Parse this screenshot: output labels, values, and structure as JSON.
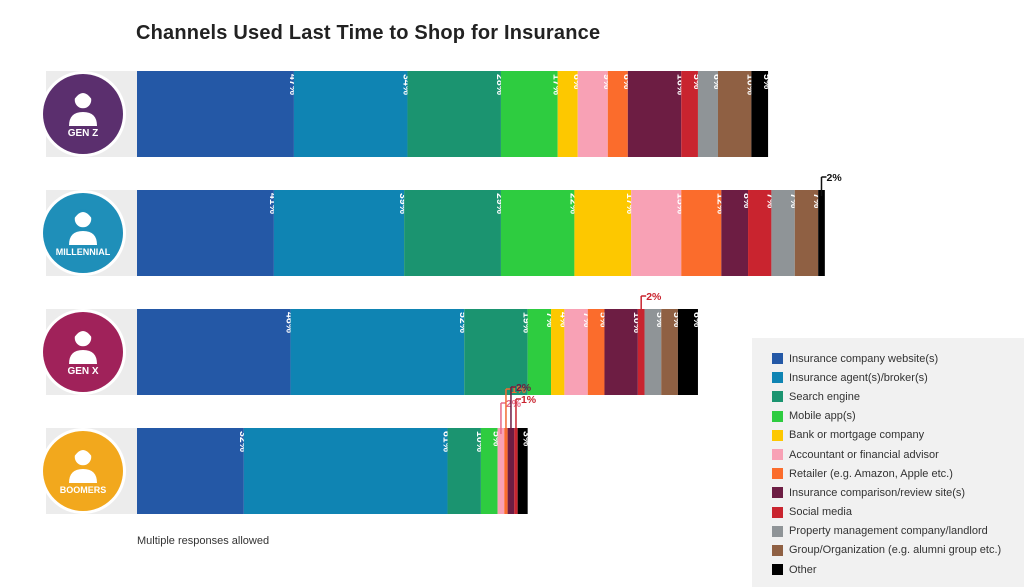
{
  "chart_data": {
    "type": "bar",
    "orientation": "horizontal-stacked",
    "title": "Channels Used Last Time to Shop for Insurance",
    "note": "Multiple responses allowed",
    "categories": [
      "GEN Z",
      "MILLENNIAL",
      "GEN X",
      "BOOMERS"
    ],
    "category_colors": [
      "#5b2f6e",
      "#1f8fb9",
      "#a0225a",
      "#f2a81d"
    ],
    "series": [
      {
        "name": "Insurance company website(s)",
        "color": "#2458a6",
        "values": [
          47,
          41,
          46,
          32
        ]
      },
      {
        "name": "Insurance agent(s)/broker(s)",
        "color": "#0f84b3",
        "values": [
          34,
          39,
          52,
          61
        ]
      },
      {
        "name": "Search engine",
        "color": "#1b9470",
        "values": [
          28,
          29,
          19,
          10
        ]
      },
      {
        "name": "Mobile app(s)",
        "color": "#2ecc40",
        "values": [
          17,
          22,
          7,
          5
        ]
      },
      {
        "name": "Bank or mortgage company",
        "color": "#fdc800",
        "values": [
          6,
          17,
          4,
          0
        ]
      },
      {
        "name": "Accountant or financial advisor",
        "color": "#f8a1b5",
        "values": [
          9,
          15,
          7,
          2
        ]
      },
      {
        "name": "Retailer (e.g. Amazon, Apple etc.)",
        "color": "#fb6c2c",
        "values": [
          6,
          12,
          5,
          1
        ]
      },
      {
        "name": "Insurance comparison/review site(s)",
        "color": "#6d1d43",
        "values": [
          16,
          8,
          10,
          2
        ]
      },
      {
        "name": "Social media",
        "color": "#c9242f",
        "values": [
          5,
          7,
          2,
          1
        ]
      },
      {
        "name": "Property management company/landlord",
        "color": "#8f9497",
        "values": [
          6,
          7,
          5,
          0
        ]
      },
      {
        "name": "Group/Organization (e.g. alumni group etc.)",
        "color": "#8f6043",
        "values": [
          10,
          7,
          5,
          0
        ]
      },
      {
        "name": "Other",
        "color": "#000000",
        "values": [
          5,
          2,
          6,
          3
        ]
      }
    ],
    "callouts": [
      {
        "category": 1,
        "series": 11,
        "label": "2%",
        "color": "#111111"
      },
      {
        "category": 2,
        "series": 8,
        "label": "2%",
        "color": "#c9242f"
      },
      {
        "category": 3,
        "series": 5,
        "label": "2%",
        "color": "#e56a8a"
      },
      {
        "category": 3,
        "series": 6,
        "label": "1%",
        "color": "#f26b32"
      },
      {
        "category": 3,
        "series": 7,
        "label": "2%",
        "color": "#6d1d43"
      },
      {
        "category": 3,
        "series": 8,
        "label": "1%",
        "color": "#c9242f"
      }
    ],
    "legend_position": "bottom-right",
    "grid": false
  }
}
